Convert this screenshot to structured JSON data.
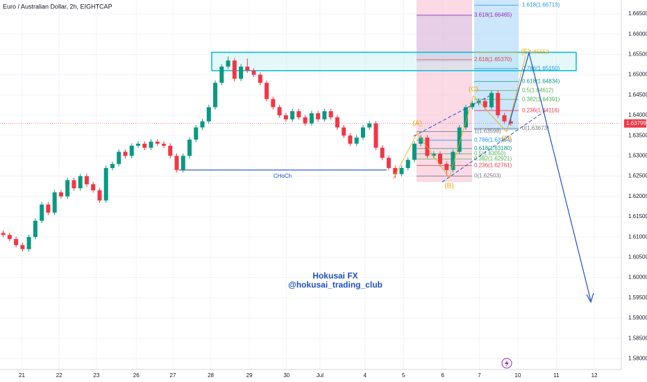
{
  "chart_data": {
    "type": "candlestick",
    "title": "Euro / Australian Dollar, 2h, EIGHTCAP",
    "up_color": "#089981",
    "down_color": "#f23645",
    "grid": true,
    "xlim": [
      -0.5,
      96.2
    ],
    "ylim": [
      1.57733,
      1.66842
    ],
    "xticks": [
      {
        "value": 2.9,
        "label": "21"
      },
      {
        "value": 8.7,
        "label": "22"
      },
      {
        "value": 14.5,
        "label": "23"
      },
      {
        "value": 20.7,
        "label": "26"
      },
      {
        "value": 26.4,
        "label": "27"
      },
      {
        "value": 32.3,
        "label": "28"
      },
      {
        "value": 38.3,
        "label": "29"
      },
      {
        "value": 44.1,
        "label": "30"
      },
      {
        "value": 49.3,
        "label": "Jul"
      },
      {
        "value": 56.3,
        "label": "4"
      },
      {
        "value": 62.3,
        "label": "5"
      },
      {
        "value": 68.4,
        "label": "6"
      },
      {
        "value": 74.1,
        "label": "7"
      },
      {
        "value": 80.1,
        "label": "10"
      },
      {
        "value": 86.1,
        "label": "11"
      },
      {
        "value": 92.0,
        "label": "12"
      }
    ],
    "yticks": [
      {
        "value": 1.58,
        "label": "1.58000"
      },
      {
        "value": 1.585,
        "label": "1.58500"
      },
      {
        "value": 1.59,
        "label": "1.59000"
      },
      {
        "value": 1.595,
        "label": "1.59500"
      },
      {
        "value": 1.6,
        "label": "1.60000"
      },
      {
        "value": 1.605,
        "label": "1.60500"
      },
      {
        "value": 1.61,
        "label": "1.61000"
      },
      {
        "value": 1.615,
        "label": "1.61500"
      },
      {
        "value": 1.62,
        "label": "1.62000"
      },
      {
        "value": 1.625,
        "label": "1.62500"
      },
      {
        "value": 1.63,
        "label": "1.63000"
      },
      {
        "value": 1.635,
        "label": "1.63500"
      },
      {
        "value": 1.64,
        "label": "1.64000"
      },
      {
        "value": 1.645,
        "label": "1.64500"
      },
      {
        "value": 1.65,
        "label": "1.65000"
      },
      {
        "value": 1.655,
        "label": "1.65500"
      },
      {
        "value": 1.66,
        "label": "1.66000"
      },
      {
        "value": 1.665,
        "label": "1.66500"
      }
    ],
    "x": [
      0,
      1,
      2,
      3,
      4,
      5,
      6,
      7,
      8,
      9,
      10,
      11,
      12,
      13,
      14,
      15,
      16,
      17,
      18,
      19,
      20,
      21,
      22,
      23,
      24,
      25,
      26,
      27,
      28,
      29,
      30,
      31,
      32,
      33,
      34,
      35,
      36,
      37,
      38,
      39,
      40,
      41,
      42,
      43,
      44,
      45,
      46,
      47,
      48,
      49,
      50,
      51,
      52,
      53,
      54,
      55,
      56,
      57,
      58,
      59,
      60,
      61,
      62,
      63,
      64,
      65,
      66,
      67,
      68,
      69,
      70,
      71,
      72,
      73,
      74,
      75,
      76,
      77,
      78,
      79
    ],
    "candles": [
      [
        1.611,
        1.6116,
        1.6099,
        1.6105
      ],
      [
        1.6105,
        1.6111,
        1.6089,
        1.6095
      ],
      [
        1.6095,
        1.6101,
        1.6074,
        1.608
      ],
      [
        1.608,
        1.6086,
        1.6064,
        1.607
      ],
      [
        1.607,
        1.6106,
        1.6064,
        1.61
      ],
      [
        1.61,
        1.6146,
        1.6094,
        1.614
      ],
      [
        1.614,
        1.6186,
        1.6134,
        1.618
      ],
      [
        1.618,
        1.6186,
        1.6154,
        1.616
      ],
      [
        1.616,
        1.6216,
        1.6154,
        1.621
      ],
      [
        1.621,
        1.6216,
        1.6194,
        1.62
      ],
      [
        1.62,
        1.6246,
        1.6194,
        1.624
      ],
      [
        1.624,
        1.6246,
        1.6214,
        1.622
      ],
      [
        1.622,
        1.6256,
        1.6214,
        1.625
      ],
      [
        1.625,
        1.6256,
        1.6224,
        1.623
      ],
      [
        1.623,
        1.6236,
        1.6209,
        1.6215
      ],
      [
        1.6215,
        1.6221,
        1.6184,
        1.619
      ],
      [
        1.619,
        1.6276,
        1.6184,
        1.627
      ],
      [
        1.627,
        1.6286,
        1.6264,
        1.628
      ],
      [
        1.628,
        1.6316,
        1.6274,
        1.631
      ],
      [
        1.631,
        1.6316,
        1.6294,
        1.63
      ],
      [
        1.63,
        1.6331,
        1.6294,
        1.6325
      ],
      [
        1.6325,
        1.6336,
        1.6319,
        1.633
      ],
      [
        1.633,
        1.6336,
        1.6314,
        1.632
      ],
      [
        1.632,
        1.6341,
        1.6314,
        1.6335
      ],
      [
        1.6335,
        1.6341,
        1.6324,
        1.633
      ],
      [
        1.633,
        1.6336,
        1.6319,
        1.6325
      ],
      [
        1.6325,
        1.6331,
        1.6294,
        1.63
      ],
      [
        1.63,
        1.6306,
        1.6259,
        1.6265
      ],
      [
        1.6265,
        1.6306,
        1.6259,
        1.63
      ],
      [
        1.63,
        1.6346,
        1.6294,
        1.634
      ],
      [
        1.634,
        1.6376,
        1.6334,
        1.637
      ],
      [
        1.637,
        1.6391,
        1.6364,
        1.6385
      ],
      [
        1.6385,
        1.6426,
        1.6379,
        1.642
      ],
      [
        1.642,
        1.6486,
        1.6414,
        1.648
      ],
      [
        1.648,
        1.6526,
        1.6474,
        1.652
      ],
      [
        1.652,
        1.6545,
        1.6514,
        1.6535
      ],
      [
        1.6535,
        1.6541,
        1.6484,
        1.649
      ],
      [
        1.649,
        1.6526,
        1.6484,
        1.652
      ],
      [
        1.652,
        1.654,
        1.6504,
        1.651
      ],
      [
        1.651,
        1.6516,
        1.6494,
        1.65
      ],
      [
        1.65,
        1.6506,
        1.6474,
        1.648
      ],
      [
        1.648,
        1.6486,
        1.6434,
        1.644
      ],
      [
        1.644,
        1.6446,
        1.6414,
        1.642
      ],
      [
        1.642,
        1.6426,
        1.6394,
        1.64
      ],
      [
        1.64,
        1.6406,
        1.6384,
        1.639
      ],
      [
        1.639,
        1.6416,
        1.6384,
        1.641
      ],
      [
        1.641,
        1.6416,
        1.6389,
        1.6395
      ],
      [
        1.6395,
        1.6401,
        1.6374,
        1.638
      ],
      [
        1.638,
        1.6411,
        1.6374,
        1.6405
      ],
      [
        1.6405,
        1.6411,
        1.6384,
        1.639
      ],
      [
        1.639,
        1.6416,
        1.6384,
        1.641
      ],
      [
        1.641,
        1.6416,
        1.6389,
        1.6395
      ],
      [
        1.6395,
        1.6401,
        1.6364,
        1.637
      ],
      [
        1.637,
        1.6376,
        1.6344,
        1.635
      ],
      [
        1.635,
        1.6356,
        1.6324,
        1.633
      ],
      [
        1.633,
        1.6351,
        1.6324,
        1.6345
      ],
      [
        1.6345,
        1.6376,
        1.6339,
        1.637
      ],
      [
        1.637,
        1.6386,
        1.6364,
        1.638
      ],
      [
        1.638,
        1.6386,
        1.6314,
        1.632
      ],
      [
        1.632,
        1.6326,
        1.6289,
        1.6295
      ],
      [
        1.6295,
        1.6301,
        1.6264,
        1.627
      ],
      [
        1.627,
        1.6276,
        1.6245,
        1.6255
      ],
      [
        1.6255,
        1.6276,
        1.6249,
        1.627
      ],
      [
        1.627,
        1.6296,
        1.6264,
        1.629
      ],
      [
        1.629,
        1.6336,
        1.6284,
        1.633
      ],
      [
        1.633,
        1.6351,
        1.6324,
        1.6345
      ],
      [
        1.6345,
        1.6351,
        1.6294,
        1.63
      ],
      [
        1.63,
        1.6311,
        1.6294,
        1.6305
      ],
      [
        1.6305,
        1.6311,
        1.6274,
        1.628
      ],
      [
        1.628,
        1.6286,
        1.6252,
        1.6265
      ],
      [
        1.6265,
        1.6316,
        1.6259,
        1.631
      ],
      [
        1.631,
        1.6376,
        1.6304,
        1.637
      ],
      [
        1.637,
        1.6426,
        1.6364,
        1.642
      ],
      [
        1.642,
        1.6436,
        1.6414,
        1.643
      ],
      [
        1.643,
        1.6441,
        1.6424,
        1.6435
      ],
      [
        1.6435,
        1.6441,
        1.6414,
        1.642
      ],
      [
        1.642,
        1.6461,
        1.6414,
        1.6455
      ],
      [
        1.6455,
        1.6461,
        1.6394,
        1.64
      ],
      [
        1.64,
        1.6406,
        1.6379,
        1.6385
      ],
      [
        1.6385,
        1.6391,
        1.6374,
        1.638
      ]
    ],
    "last_price": 1.63799,
    "zone": {
      "top": 1.65552,
      "bottom": 1.651
    },
    "choch": {
      "text": "CHoCh",
      "price": 1.6265
    },
    "fib_left": [
      {
        "text": "3.618(1.66465)",
        "price": 1.66465
      },
      {
        "text": "2.618(1.65370)",
        "price": 1.6537
      },
      {
        "text": "1(1.63598)",
        "price": 1.63598
      },
      {
        "text": "0.786(1.63384)",
        "price": 1.63384
      },
      {
        "text": "0.618(1.63180)",
        "price": 1.6318
      },
      {
        "text": "0.5(1.63050)",
        "price": 1.6305
      },
      {
        "text": "0.382(1.62921)",
        "price": 1.62921
      },
      {
        "text": "0.236(1.62761)",
        "price": 1.62761
      },
      {
        "text": "0(1.62503)",
        "price": 1.62503
      }
    ],
    "fib_right": [
      {
        "text": "1.618(1.66713)",
        "price": 1.66713
      },
      {
        "text": "1.65552",
        "price": 1.65552
      },
      {
        "text": "0.786(1.65150)",
        "price": 1.6515
      },
      {
        "text": "0.618(1.64834)",
        "price": 1.64834
      },
      {
        "text": "0.5(1.64612)",
        "price": 1.64612
      },
      {
        "text": "0.382(1.64391)",
        "price": 1.64391
      },
      {
        "text": "0.236(1.64116)",
        "price": 1.64116
      },
      {
        "text": "0(1.63673)",
        "price": 1.63673
      }
    ],
    "waves": [
      "(A)",
      "(B)",
      "(C)",
      "(D)",
      "(E)"
    ],
    "watermark": [
      "Hokusai FX",
      "@hokusai_trading_club"
    ]
  }
}
